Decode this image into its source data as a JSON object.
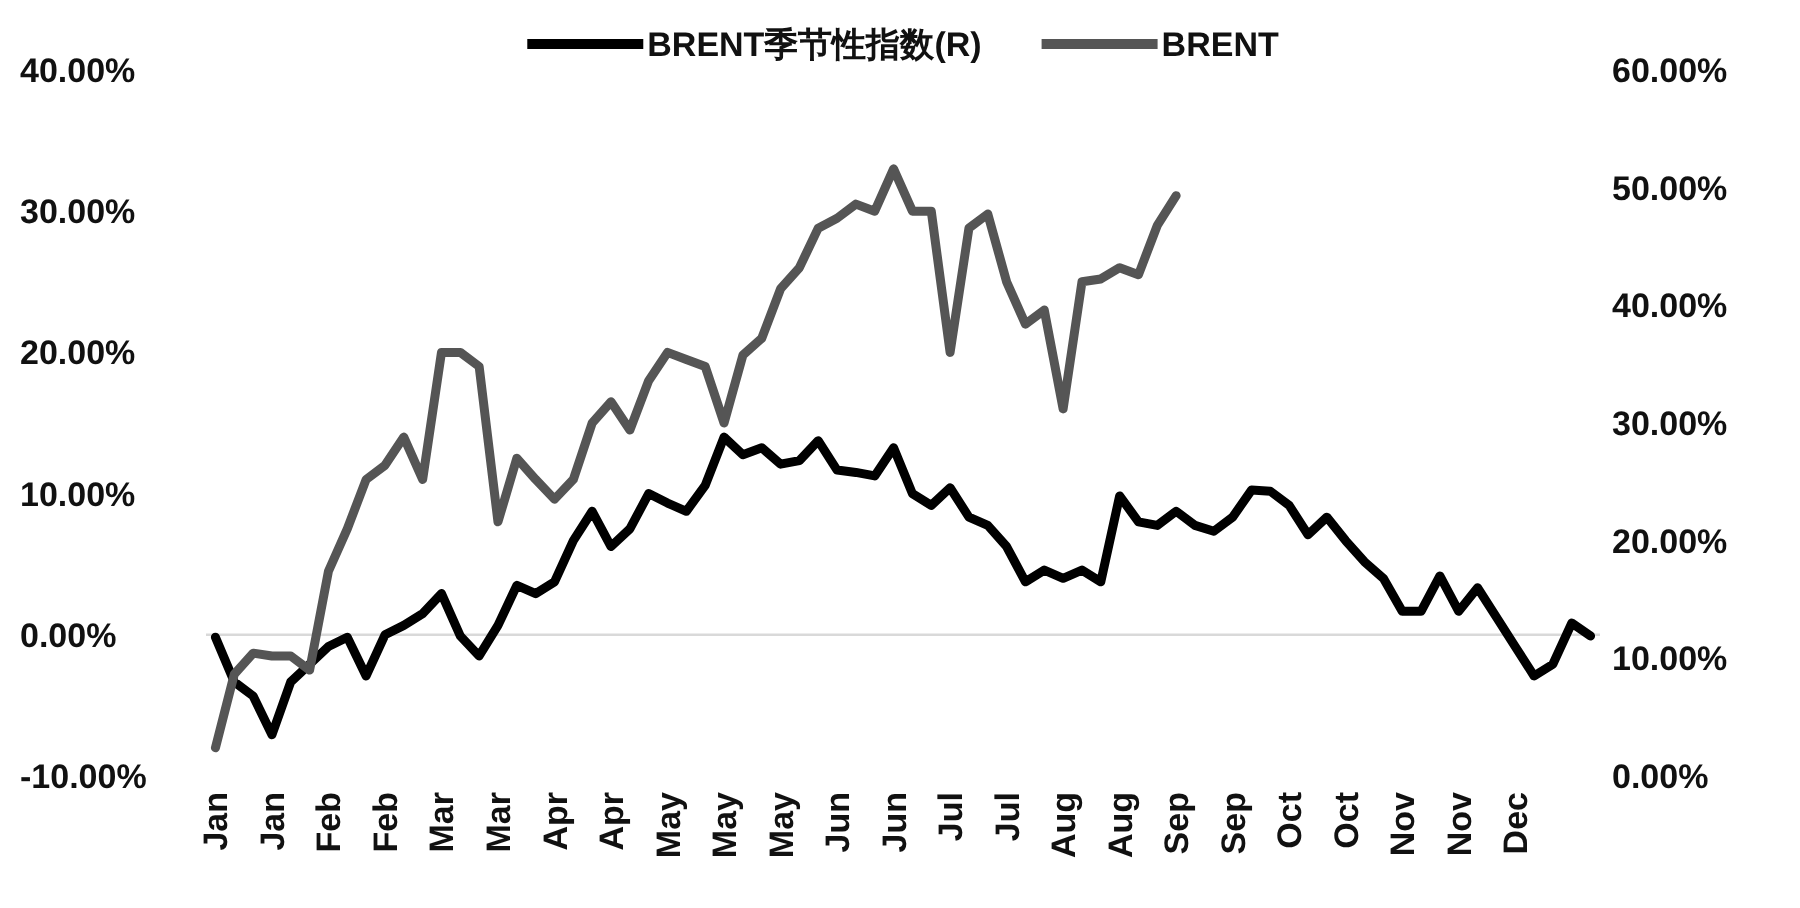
{
  "chart_data": {
    "type": "line",
    "categories": [
      "Jan",
      null,
      null,
      "Jan",
      null,
      null,
      "Feb",
      null,
      null,
      "Feb",
      null,
      null,
      "Mar",
      null,
      null,
      "Mar",
      null,
      null,
      "Apr",
      null,
      null,
      "Apr",
      null,
      null,
      "May",
      null,
      null,
      "May",
      null,
      null,
      "May",
      null,
      null,
      "Jun",
      null,
      null,
      "Jun",
      null,
      null,
      "Jul",
      null,
      null,
      "Jul",
      null,
      null,
      "Aug",
      null,
      null,
      "Aug",
      null,
      null,
      "Sep",
      null,
      null,
      "Sep",
      null,
      null,
      "Oct",
      null,
      null,
      "Oct",
      null,
      null,
      "Nov",
      null,
      null,
      "Nov",
      null,
      null,
      "Dec",
      null,
      null,
      null,
      null
    ],
    "series": [
      {
        "name": "BRENT季节性指数(R)",
        "color": "#000000",
        "axis": "y2",
        "values": [
          11.8,
          8,
          6.8,
          3.5,
          8,
          9.5,
          11,
          11.8,
          8.5,
          12,
          12.8,
          13.8,
          15.5,
          11.9,
          10.2,
          12.8,
          16.2,
          15.5,
          16.5,
          20,
          22.5,
          19.5,
          21,
          24,
          23.2,
          22.5,
          24.7,
          28.8,
          27.3,
          27.9,
          26.5,
          26.8,
          28.5,
          26,
          25.8,
          25.5,
          27.9,
          24,
          23,
          24.5,
          22,
          21.3,
          19.5,
          16.5,
          17.5,
          16.8,
          17.5,
          16.5,
          23.8,
          21.6,
          21.3,
          22.5,
          21.3,
          20.8,
          22,
          24.3,
          24.2,
          23,
          20.5,
          22,
          20,
          18.2,
          16.8,
          14,
          14,
          17,
          14,
          16,
          13.5,
          11,
          8.5,
          9.5,
          13,
          11.9
        ]
      },
      {
        "name": "BRENT",
        "color": "#555555",
        "values": [
          -8,
          -2.8,
          -1.3,
          -1.5,
          -1.5,
          -2.5,
          4.5,
          7.5,
          11,
          12,
          14,
          11,
          20,
          20,
          19,
          8,
          12.5,
          11,
          9.6,
          11,
          15,
          16.5,
          14.5,
          18,
          20,
          19.5,
          19,
          15,
          19.8,
          21,
          24.5,
          26,
          28.8,
          29.5,
          30.5,
          30,
          33,
          30,
          30,
          20,
          28.8,
          29.8,
          25,
          22,
          23,
          16,
          25,
          25.2,
          26,
          25.5,
          29,
          31.1,
          null,
          null,
          null,
          null,
          null,
          null,
          null,
          null,
          null,
          null,
          null,
          null,
          null,
          null,
          null,
          null,
          null,
          null,
          null,
          null,
          null,
          null
        ]
      }
    ],
    "ylim": [
      -10,
      40
    ],
    "yticks": [
      {
        "value": -10,
        "label": "-10.00%"
      },
      {
        "value": 0,
        "label": "0.00%"
      },
      {
        "value": 10,
        "label": "10.00%"
      },
      {
        "value": 20,
        "label": "20.00%"
      },
      {
        "value": 30,
        "label": "30.00%"
      },
      {
        "value": 40,
        "label": "40.00%"
      }
    ],
    "y2lim": [
      0,
      60
    ],
    "y2ticks": [
      {
        "value": 0,
        "label": "0.00%"
      },
      {
        "value": 10,
        "label": "10.00%"
      },
      {
        "value": 20,
        "label": "20.00%"
      },
      {
        "value": 30,
        "label": "30.00%"
      },
      {
        "value": 40,
        "label": "40.00%"
      },
      {
        "value": 50,
        "label": "50.00%"
      },
      {
        "value": 60,
        "label": "60.00%"
      }
    ],
    "ref_lines": [
      {
        "axis": "y",
        "value": 0,
        "color": "#d9d9d9"
      }
    ],
    "grid": false,
    "legend": "top",
    "line_style": "solid",
    "marker": "none"
  }
}
